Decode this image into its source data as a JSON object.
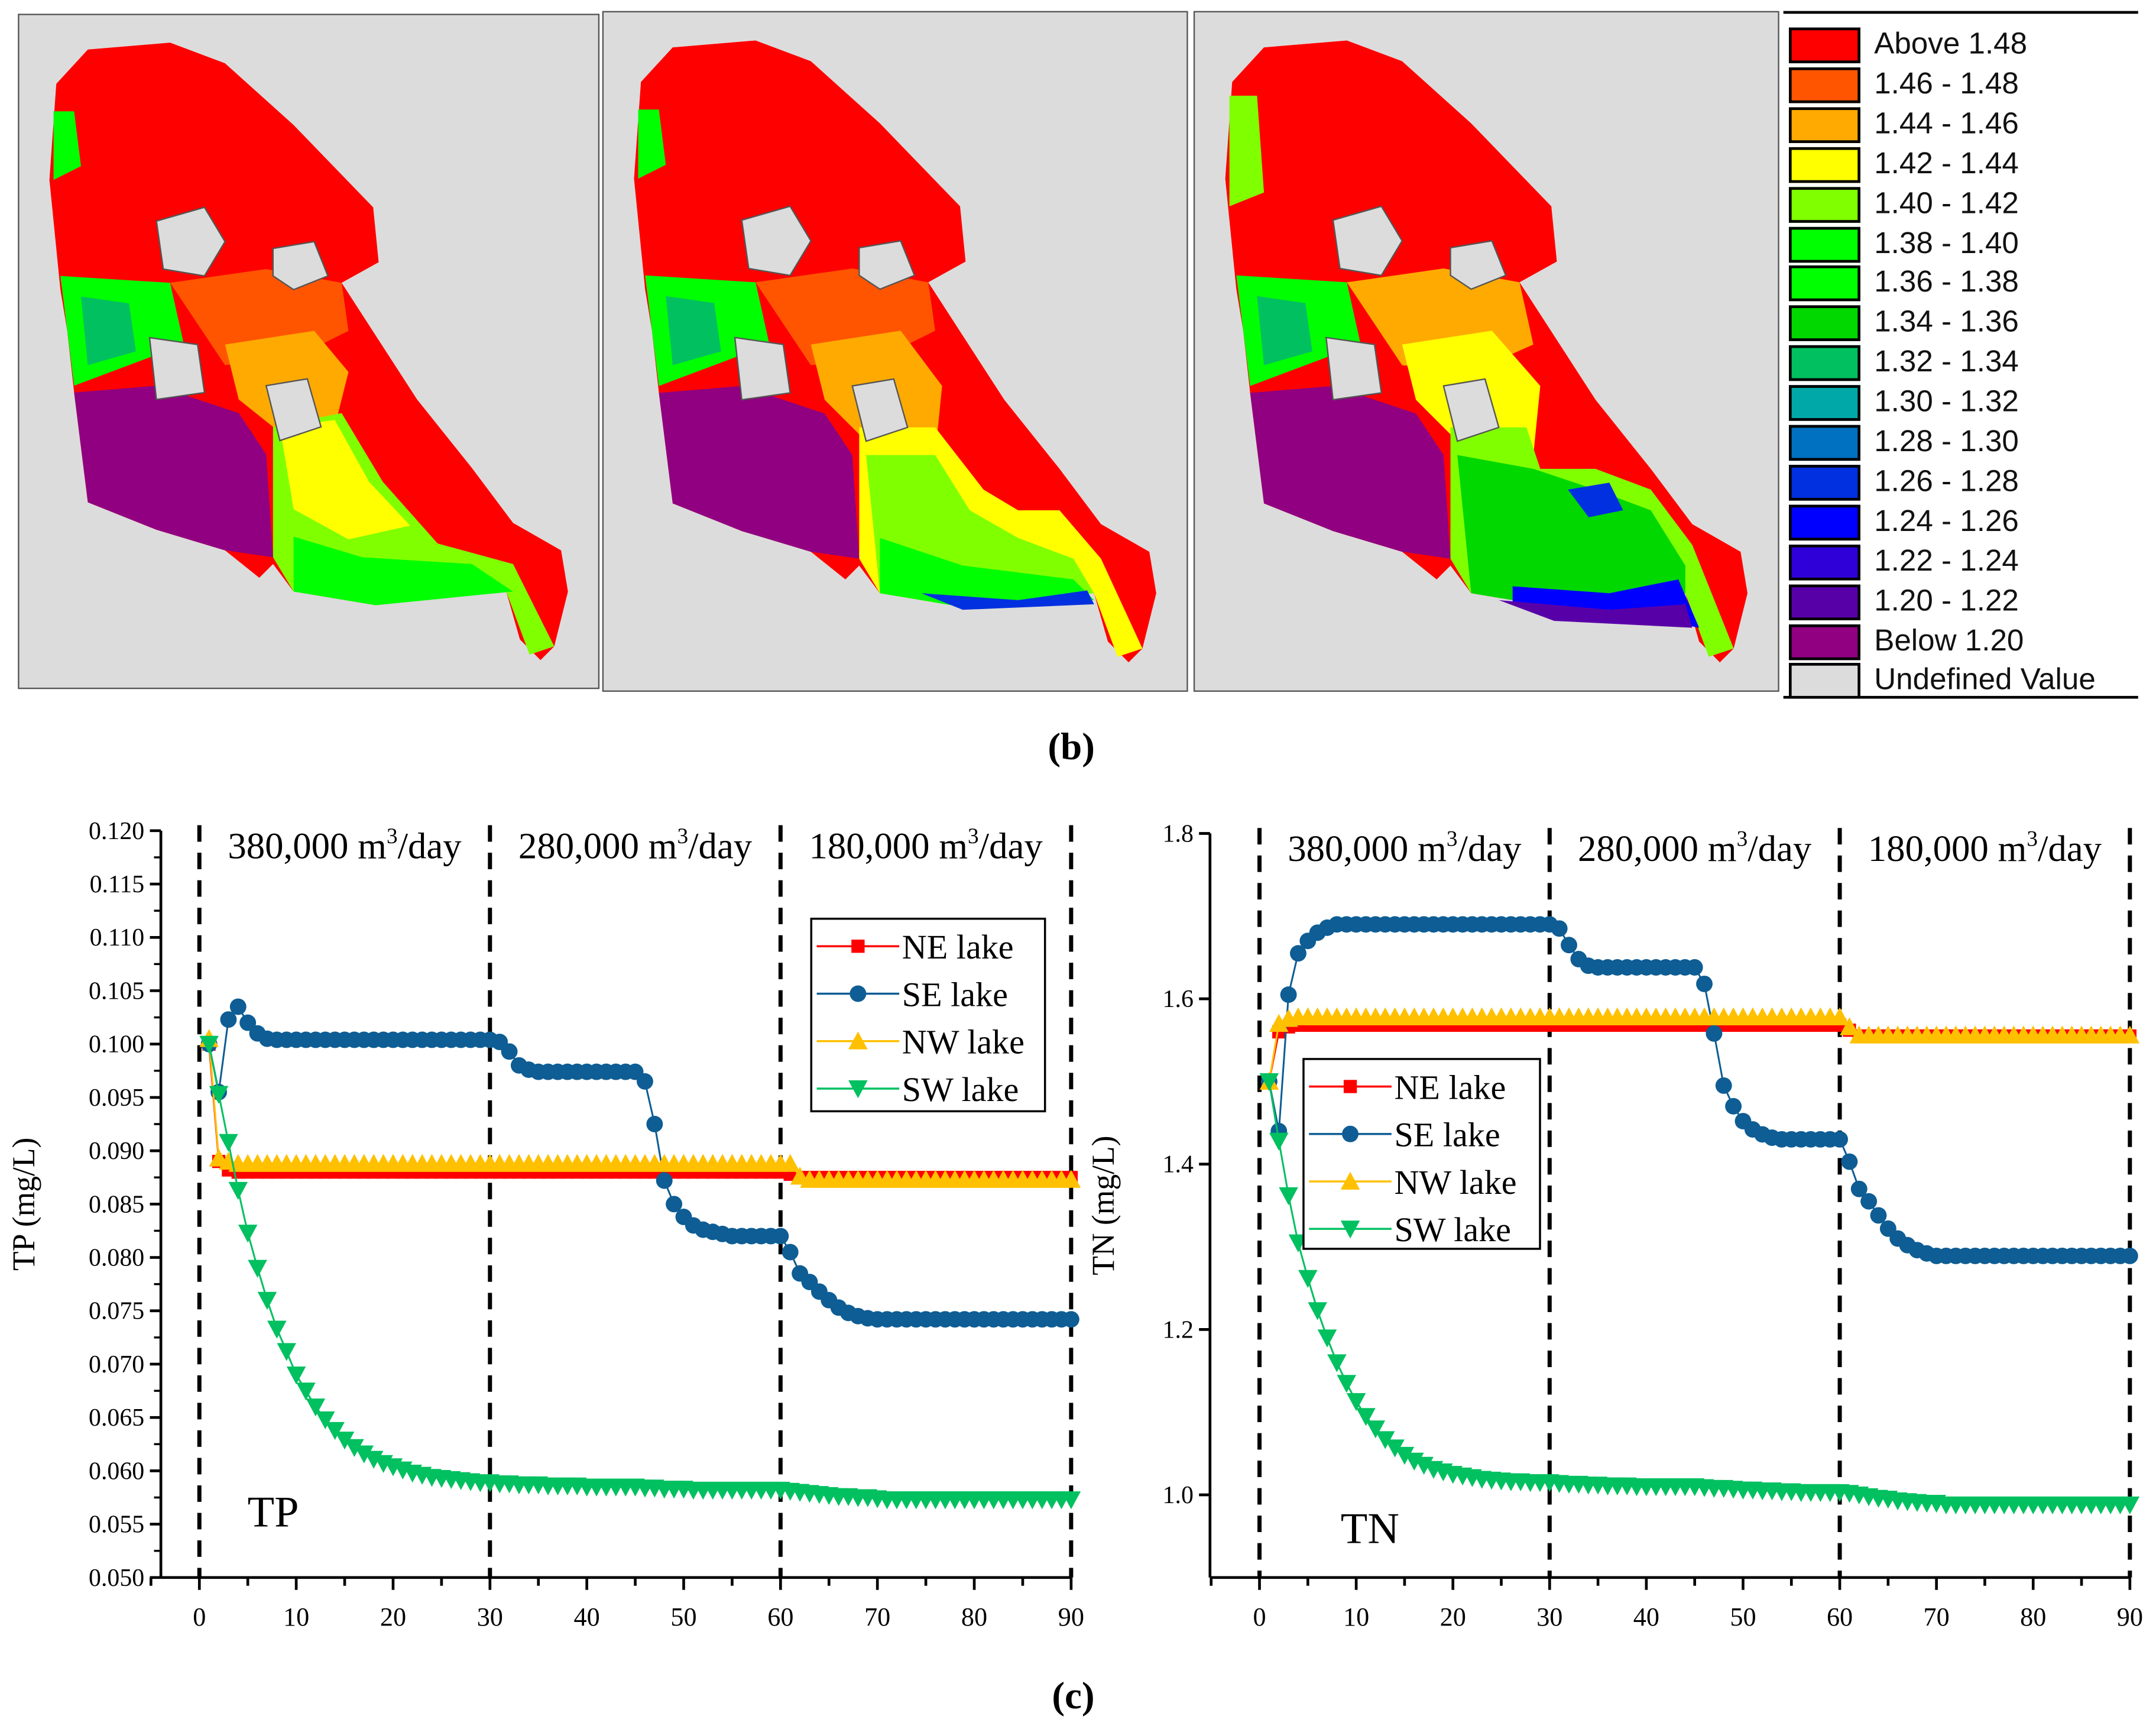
{
  "figure": {
    "caption_b": "(b)",
    "caption_c": "(c)",
    "b_caption_letter": "b",
    "c_caption_letter": "c"
  },
  "maps": {
    "panels": [
      "panel-1",
      "panel-2",
      "panel-3"
    ],
    "legend": [
      {
        "label": "Above 1.48",
        "color": "#ff0000"
      },
      {
        "label": "1.46 - 1.48",
        "color": "#ff5500"
      },
      {
        "label": "1.44 - 1.46",
        "color": "#ffaa00"
      },
      {
        "label": "1.42 - 1.44",
        "color": "#ffff00"
      },
      {
        "label": "1.40 - 1.42",
        "color": "#80ff00"
      },
      {
        "label": "1.38 - 1.40",
        "color": "#00ff00"
      },
      {
        "label": "1.36 - 1.38",
        "color": "#00ff00"
      },
      {
        "label": "1.34 - 1.36",
        "color": "#00d800"
      },
      {
        "label": "1.32 - 1.34",
        "color": "#00c060"
      },
      {
        "label": "1.30 - 1.32",
        "color": "#00a8a8"
      },
      {
        "label": "1.28 - 1.30",
        "color": "#0070c0"
      },
      {
        "label": "1.26 - 1.28",
        "color": "#0030e0"
      },
      {
        "label": "1.24 - 1.26",
        "color": "#0000ff"
      },
      {
        "label": "1.22 - 1.24",
        "color": "#3000d8"
      },
      {
        "label": "1.20 - 1.22",
        "color": "#5800a8"
      },
      {
        "label": "Below 1.20",
        "color": "#900080"
      },
      {
        "label": "Undefined Value",
        "color": "#dcdcdc"
      }
    ]
  },
  "chart_data": [
    {
      "type": "line",
      "title": "TP",
      "xlabel": "",
      "ylabel": "TP (mg/L)",
      "xlim": [
        -10,
        90
      ],
      "ylim": [
        0.05,
        0.12
      ],
      "xticks": [
        "0",
        "10",
        "20",
        "30",
        "40",
        "50",
        "60",
        "70",
        "80",
        "90"
      ],
      "yticks": [
        "0.050",
        "0.055",
        "0.060",
        "0.065",
        "0.070",
        "0.075",
        "0.080",
        "0.085",
        "0.090",
        "0.095",
        "0.100",
        "0.105",
        "0.110",
        "0.115",
        "0.120"
      ],
      "dividers": [
        0,
        30,
        60,
        90
      ],
      "periods": [
        {
          "value": "380,000 m",
          "sup": "3",
          "unit": "/day"
        },
        {
          "value": "280,000 m",
          "sup": "3",
          "unit": "/day"
        },
        {
          "value": "180,000 m",
          "sup": "3",
          "unit": "/day"
        }
      ],
      "legend_position": "top-right",
      "x_start": 1,
      "x_step": 1,
      "series": [
        {
          "name": "NE lake",
          "color": "#ff0000",
          "marker": "square",
          "values": [
            0.1,
            0.089,
            0.0882,
            0.088,
            0.088,
            0.088,
            0.088,
            0.088,
            0.088,
            0.088,
            0.088,
            0.088,
            0.088,
            0.088,
            0.088,
            0.088,
            0.088,
            0.088,
            0.088,
            0.088,
            0.088,
            0.088,
            0.088,
            0.088,
            0.088,
            0.088,
            0.088,
            0.088,
            0.088,
            0.088,
            0.088,
            0.088,
            0.088,
            0.088,
            0.088,
            0.088,
            0.088,
            0.088,
            0.088,
            0.088,
            0.088,
            0.088,
            0.088,
            0.088,
            0.088,
            0.088,
            0.088,
            0.088,
            0.088,
            0.088,
            0.088,
            0.088,
            0.088,
            0.088,
            0.088,
            0.088,
            0.088,
            0.088,
            0.088,
            0.088,
            0.0878,
            0.0875,
            0.0875,
            0.0875,
            0.0875,
            0.0875,
            0.0875,
            0.0875,
            0.0875,
            0.0875,
            0.0875,
            0.0875,
            0.0875,
            0.0875,
            0.0875,
            0.0875,
            0.0875,
            0.0875,
            0.0875,
            0.0875,
            0.0875,
            0.0875,
            0.0875,
            0.0875,
            0.0875,
            0.0875,
            0.0875,
            0.0875,
            0.0875,
            0.0875
          ]
        },
        {
          "name": "SE lake",
          "color": "#0e5d94",
          "marker": "circle",
          "values": [
            0.1,
            0.0955,
            0.1023,
            0.1035,
            0.102,
            0.101,
            0.1005,
            0.1004,
            0.1004,
            0.1004,
            0.1004,
            0.1004,
            0.1004,
            0.1004,
            0.1004,
            0.1004,
            0.1004,
            0.1004,
            0.1004,
            0.1004,
            0.1004,
            0.1004,
            0.1004,
            0.1004,
            0.1004,
            0.1004,
            0.1004,
            0.1004,
            0.1004,
            0.1004,
            0.1002,
            0.0993,
            0.098,
            0.0976,
            0.0974,
            0.0974,
            0.0974,
            0.0974,
            0.0974,
            0.0974,
            0.0974,
            0.0974,
            0.0974,
            0.0974,
            0.0974,
            0.0965,
            0.0925,
            0.0872,
            0.085,
            0.0838,
            0.083,
            0.0826,
            0.0824,
            0.0822,
            0.082,
            0.082,
            0.082,
            0.082,
            0.082,
            0.082,
            0.0805,
            0.0785,
            0.0777,
            0.0768,
            0.076,
            0.0753,
            0.0748,
            0.0745,
            0.0743,
            0.0742,
            0.0742,
            0.0742,
            0.0742,
            0.0742,
            0.0742,
            0.0742,
            0.0742,
            0.0742,
            0.0742,
            0.0742,
            0.0742,
            0.0742,
            0.0742,
            0.0742,
            0.0742,
            0.0742,
            0.0742,
            0.0742,
            0.0742,
            0.0742
          ]
        },
        {
          "name": "NW lake",
          "color": "#ffc000",
          "marker": "triangle-up",
          "values": [
            0.1005,
            0.0893,
            0.089,
            0.0888,
            0.0888,
            0.0888,
            0.0888,
            0.0888,
            0.0888,
            0.0888,
            0.0888,
            0.0888,
            0.0888,
            0.0888,
            0.0888,
            0.0888,
            0.0888,
            0.0888,
            0.0888,
            0.0888,
            0.0888,
            0.0888,
            0.0888,
            0.0888,
            0.0888,
            0.0888,
            0.0888,
            0.0888,
            0.0888,
            0.0888,
            0.0888,
            0.0888,
            0.0888,
            0.0888,
            0.0888,
            0.0888,
            0.0888,
            0.0888,
            0.0888,
            0.0888,
            0.0888,
            0.0888,
            0.0888,
            0.0888,
            0.0888,
            0.0888,
            0.0888,
            0.0888,
            0.0888,
            0.0888,
            0.0888,
            0.0888,
            0.0888,
            0.0888,
            0.0888,
            0.0888,
            0.0888,
            0.0888,
            0.0888,
            0.0888,
            0.0888,
            0.0876,
            0.0873,
            0.0873,
            0.0873,
            0.0873,
            0.0873,
            0.0873,
            0.0873,
            0.0873,
            0.0873,
            0.0873,
            0.0873,
            0.0873,
            0.0873,
            0.0873,
            0.0873,
            0.0873,
            0.0873,
            0.0873,
            0.0873,
            0.0873,
            0.0873,
            0.0873,
            0.0873,
            0.0873,
            0.0873,
            0.0873,
            0.0873,
            0.0873
          ]
        },
        {
          "name": "SW lake",
          "color": "#00c060",
          "marker": "triangle-down",
          "values": [
            0.1,
            0.0953,
            0.0908,
            0.0863,
            0.0823,
            0.079,
            0.076,
            0.0733,
            0.0712,
            0.069,
            0.0675,
            0.066,
            0.0648,
            0.0638,
            0.0629,
            0.0622,
            0.0616,
            0.0611,
            0.0607,
            0.0604,
            0.0601,
            0.0598,
            0.0596,
            0.0594,
            0.0593,
            0.0592,
            0.0591,
            0.059,
            0.0589,
            0.0589,
            0.0588,
            0.0588,
            0.0587,
            0.0587,
            0.0587,
            0.0586,
            0.0586,
            0.0586,
            0.0586,
            0.0585,
            0.0585,
            0.0585,
            0.0585,
            0.0585,
            0.0585,
            0.0584,
            0.0584,
            0.0583,
            0.0583,
            0.0583,
            0.0582,
            0.0582,
            0.0582,
            0.0582,
            0.0582,
            0.0582,
            0.0582,
            0.0582,
            0.0582,
            0.0582,
            0.0581,
            0.058,
            0.0579,
            0.0578,
            0.0577,
            0.0576,
            0.0576,
            0.0575,
            0.0575,
            0.0574,
            0.0573,
            0.0573,
            0.0573,
            0.0573,
            0.0573,
            0.0573,
            0.0573,
            0.0573,
            0.0573,
            0.0573,
            0.0573,
            0.0573,
            0.0573,
            0.0573,
            0.0573,
            0.0573,
            0.0573,
            0.0573,
            0.0573,
            0.0573
          ]
        }
      ]
    },
    {
      "type": "line",
      "title": "TN",
      "xlabel": "",
      "ylabel": "TN (mg/L)",
      "xlim": [
        -10,
        90
      ],
      "ylim": [
        0.9,
        1.8
      ],
      "xticks": [
        "0",
        "10",
        "20",
        "30",
        "40",
        "50",
        "60",
        "70",
        "80",
        "90"
      ],
      "yticks": [
        "1.0",
        "1.2",
        "1.4",
        "1.6",
        "1.8"
      ],
      "dividers": [
        0,
        30,
        60,
        90
      ],
      "periods": [
        {
          "value": "380,000 m",
          "sup": "3",
          "unit": "/day"
        },
        {
          "value": "280,000 m",
          "sup": "3",
          "unit": "/day"
        },
        {
          "value": "180,000 m",
          "sup": "3",
          "unit": "/day"
        }
      ],
      "legend_position": "center-left",
      "x_start": 1,
      "x_step": 1,
      "series": [
        {
          "name": "NE lake",
          "color": "#ff0000",
          "marker": "square",
          "values": [
            1.5,
            1.56,
            1.566,
            1.568,
            1.568,
            1.568,
            1.568,
            1.568,
            1.568,
            1.568,
            1.568,
            1.568,
            1.568,
            1.568,
            1.568,
            1.568,
            1.568,
            1.568,
            1.568,
            1.568,
            1.568,
            1.568,
            1.568,
            1.568,
            1.568,
            1.568,
            1.568,
            1.568,
            1.568,
            1.568,
            1.568,
            1.568,
            1.568,
            1.568,
            1.568,
            1.568,
            1.568,
            1.568,
            1.568,
            1.568,
            1.568,
            1.568,
            1.568,
            1.568,
            1.568,
            1.568,
            1.568,
            1.568,
            1.568,
            1.568,
            1.568,
            1.568,
            1.568,
            1.568,
            1.568,
            1.568,
            1.568,
            1.568,
            1.568,
            1.568,
            1.562,
            1.555,
            1.555,
            1.555,
            1.555,
            1.555,
            1.555,
            1.555,
            1.555,
            1.555,
            1.555,
            1.555,
            1.555,
            1.555,
            1.555,
            1.555,
            1.555,
            1.555,
            1.555,
            1.555,
            1.555,
            1.555,
            1.555,
            1.555,
            1.555,
            1.555,
            1.555,
            1.555,
            1.555,
            1.555
          ]
        },
        {
          "name": "SE lake",
          "color": "#0e5d94",
          "marker": "circle",
          "values": [
            1.5,
            1.44,
            1.605,
            1.655,
            1.67,
            1.68,
            1.686,
            1.69,
            1.69,
            1.69,
            1.69,
            1.69,
            1.69,
            1.69,
            1.69,
            1.69,
            1.69,
            1.69,
            1.69,
            1.69,
            1.69,
            1.69,
            1.69,
            1.69,
            1.69,
            1.69,
            1.69,
            1.69,
            1.69,
            1.69,
            1.685,
            1.665,
            1.648,
            1.64,
            1.638,
            1.638,
            1.638,
            1.638,
            1.638,
            1.638,
            1.638,
            1.638,
            1.638,
            1.638,
            1.638,
            1.618,
            1.558,
            1.495,
            1.47,
            1.452,
            1.442,
            1.436,
            1.432,
            1.43,
            1.43,
            1.43,
            1.43,
            1.43,
            1.43,
            1.43,
            1.403,
            1.37,
            1.355,
            1.338,
            1.322,
            1.31,
            1.302,
            1.296,
            1.292,
            1.289,
            1.289,
            1.289,
            1.289,
            1.289,
            1.289,
            1.289,
            1.289,
            1.289,
            1.289,
            1.289,
            1.289,
            1.289,
            1.289,
            1.289,
            1.289,
            1.289,
            1.289,
            1.289,
            1.289,
            1.289
          ]
        },
        {
          "name": "NW lake",
          "color": "#ffc000",
          "marker": "triangle-up",
          "values": [
            1.5,
            1.57,
            1.576,
            1.578,
            1.578,
            1.578,
            1.578,
            1.578,
            1.578,
            1.578,
            1.578,
            1.578,
            1.578,
            1.578,
            1.578,
            1.578,
            1.578,
            1.578,
            1.578,
            1.578,
            1.578,
            1.578,
            1.578,
            1.578,
            1.578,
            1.578,
            1.578,
            1.578,
            1.578,
            1.578,
            1.578,
            1.578,
            1.578,
            1.578,
            1.578,
            1.578,
            1.578,
            1.578,
            1.578,
            1.578,
            1.578,
            1.578,
            1.578,
            1.578,
            1.578,
            1.578,
            1.578,
            1.578,
            1.578,
            1.578,
            1.578,
            1.578,
            1.578,
            1.578,
            1.578,
            1.578,
            1.578,
            1.578,
            1.578,
            1.578,
            1.566,
            1.556,
            1.556,
            1.556,
            1.556,
            1.556,
            1.556,
            1.556,
            1.556,
            1.556,
            1.556,
            1.556,
            1.556,
            1.556,
            1.556,
            1.556,
            1.556,
            1.556,
            1.556,
            1.556,
            1.556,
            1.556,
            1.556,
            1.556,
            1.556,
            1.556,
            1.556,
            1.556,
            1.556,
            1.556
          ]
        },
        {
          "name": "SW lake",
          "color": "#00c060",
          "marker": "triangle-down",
          "values": [
            1.5,
            1.428,
            1.362,
            1.305,
            1.262,
            1.223,
            1.19,
            1.16,
            1.135,
            1.113,
            1.095,
            1.08,
            1.067,
            1.057,
            1.048,
            1.041,
            1.036,
            1.031,
            1.028,
            1.025,
            1.023,
            1.021,
            1.019,
            1.018,
            1.017,
            1.016,
            1.016,
            1.015,
            1.015,
            1.015,
            1.014,
            1.013,
            1.013,
            1.012,
            1.012,
            1.011,
            1.011,
            1.011,
            1.01,
            1.01,
            1.01,
            1.01,
            1.01,
            1.01,
            1.01,
            1.009,
            1.008,
            1.008,
            1.007,
            1.006,
            1.006,
            1.005,
            1.005,
            1.004,
            1.004,
            1.003,
            1.003,
            1.003,
            1.003,
            1.003,
            1.002,
            1.0,
            0.998,
            0.996,
            0.995,
            0.993,
            0.992,
            0.991,
            0.99,
            0.99,
            0.988,
            0.988,
            0.988,
            0.988,
            0.988,
            0.988,
            0.988,
            0.988,
            0.988,
            0.988,
            0.988,
            0.988,
            0.988,
            0.988,
            0.988,
            0.988,
            0.988,
            0.988,
            0.988,
            0.988
          ]
        }
      ]
    }
  ]
}
